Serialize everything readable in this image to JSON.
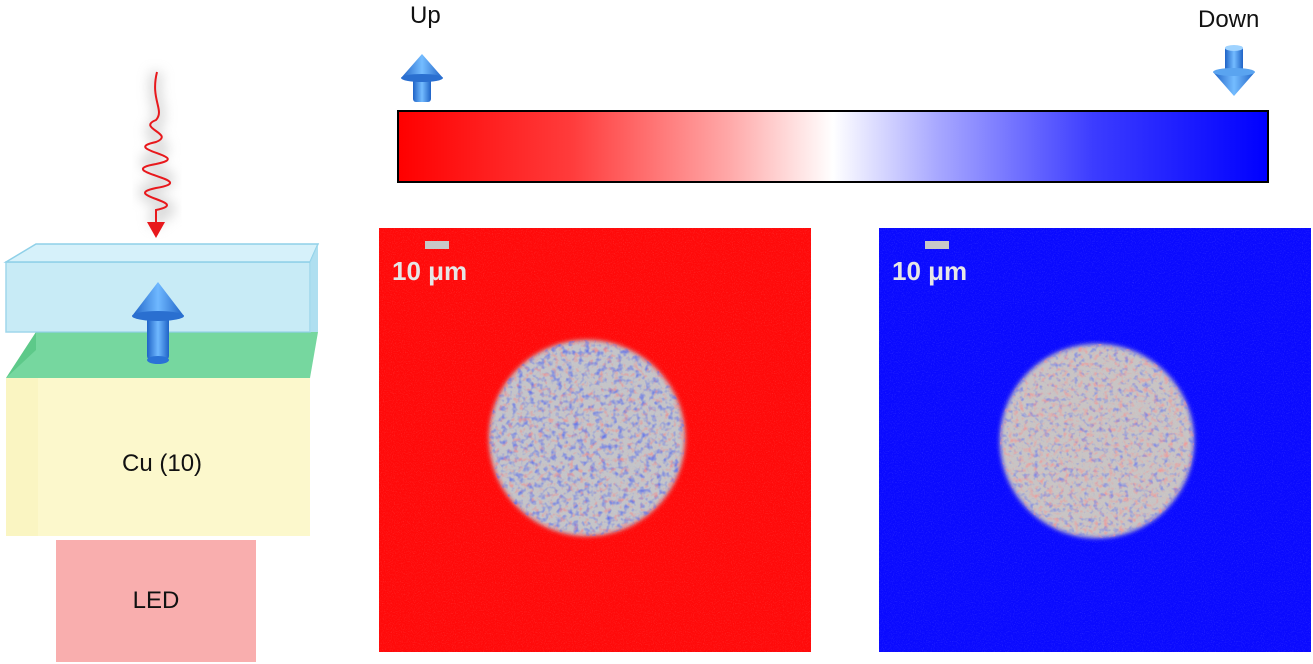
{
  "colorbar": {
    "label_up": "Up",
    "label_down": "Down",
    "colors": [
      "#ff0000",
      "#ffffff",
      "#0000ff"
    ]
  },
  "stack": {
    "layer_label": "Cu (10)",
    "led_label": "LED",
    "colors": {
      "top_layer": "#bfe8f5",
      "middle_layer": "#5ed08e",
      "bottom_layer": "#fcf7c6",
      "led": "#f9aeae",
      "pulse": "#e8181c",
      "arrow": "#3a8fe8"
    }
  },
  "panels": [
    {
      "scale_label": "10 μm",
      "background_color": "#ff0a0a",
      "domain_color": "#c4c4c8"
    },
    {
      "scale_label": "10 μm",
      "background_color": "#0a0aff",
      "domain_color": "#c8c4c4"
    }
  ]
}
